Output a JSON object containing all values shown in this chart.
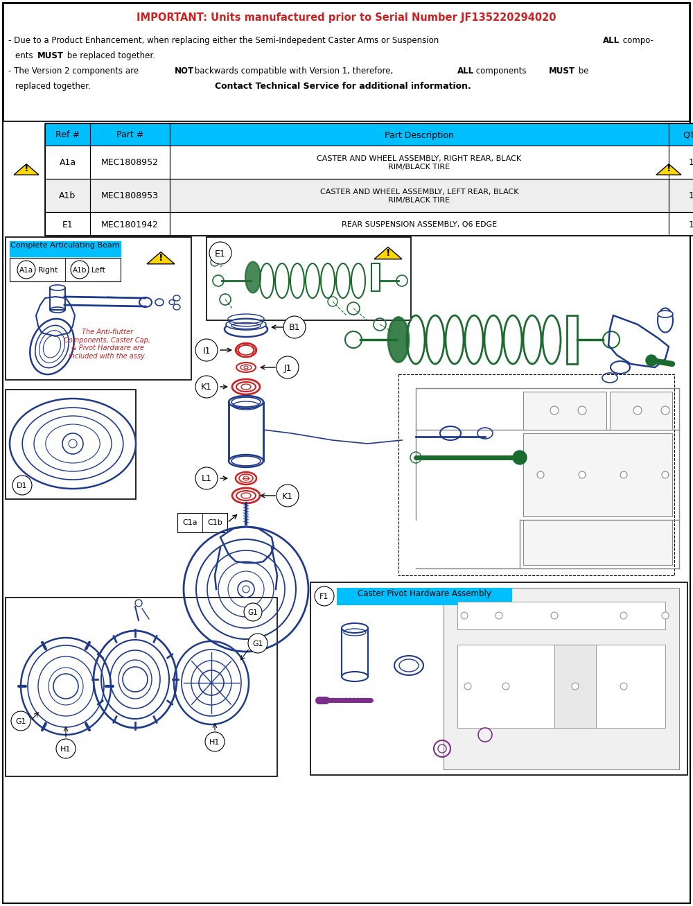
{
  "important_title": "IMPORTANT: Units manufactured prior to Serial Number JF135220294020",
  "table_headers": [
    "Ref #",
    "Part #",
    "Part Description",
    "QTY"
  ],
  "table_rows": [
    [
      "A1a",
      "MEC1808952",
      "CASTER AND WHEEL ASSEMBLY, RIGHT REAR, BLACK\nRIM/BLACK TIRE",
      "1"
    ],
    [
      "A1b",
      "MEC1808953",
      "CASTER AND WHEEL ASSEMBLY, LEFT REAR, BLACK\nRIM/BLACK TIRE",
      "1"
    ],
    [
      "E1",
      "MEC1801942",
      "REAR SUSPENSION ASSEMBLY, Q6 EDGE",
      "1"
    ]
  ],
  "header_color": "#00BFFF",
  "row_color_even": "#FFFFFF",
  "row_color_odd": "#EEEEEE",
  "important_title_color": "#FF0000",
  "bg_color": "#FFFFFF",
  "label_box_color": "#00BFFF",
  "blue": "#1E3A8A",
  "green": "#1B6B2F",
  "red": "#CC2222",
  "gray": "#888888",
  "purple": "#7B2D8B",
  "warning_yellow": "#FFD700"
}
